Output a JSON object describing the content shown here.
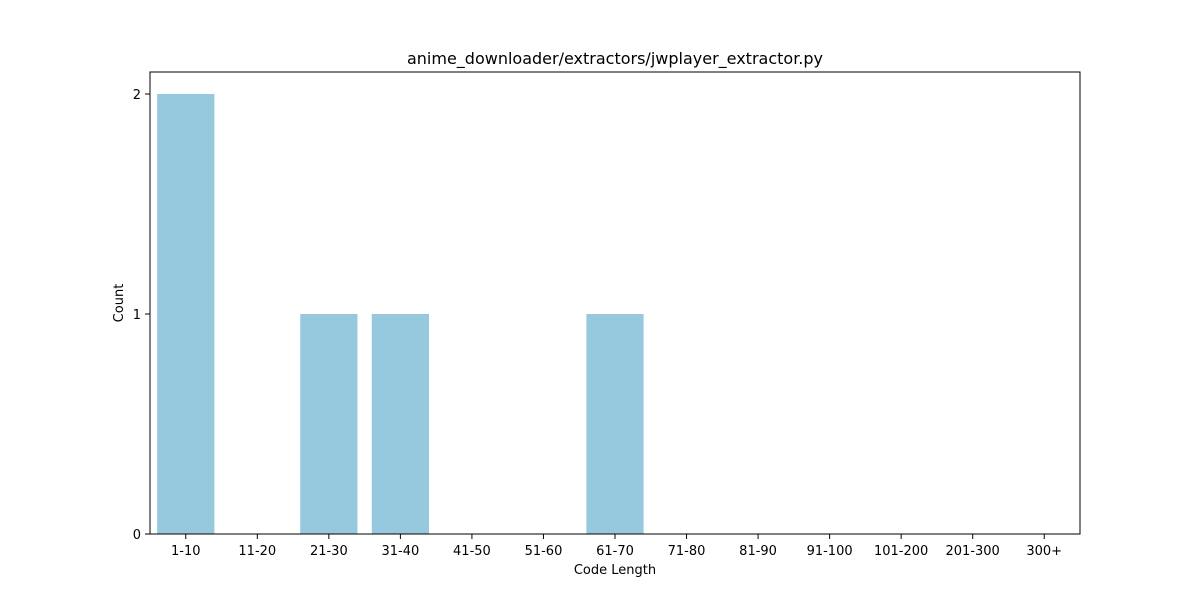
{
  "chart_data": {
    "type": "bar",
    "title": "anime_downloader/extractors/jwplayer_extractor.py",
    "xlabel": "Code Length",
    "ylabel": "Count",
    "categories": [
      "1-10",
      "11-20",
      "21-30",
      "31-40",
      "41-50",
      "51-60",
      "61-70",
      "71-80",
      "81-90",
      "91-100",
      "101-200",
      "201-300",
      "300+"
    ],
    "values": [
      2,
      0,
      1,
      1,
      0,
      0,
      1,
      0,
      0,
      0,
      0,
      0,
      0
    ],
    "ylim": [
      0,
      2.1
    ],
    "yticks": [
      0,
      1,
      2
    ],
    "bar_color": "#96c9de",
    "grid": false,
    "legend": "none"
  }
}
